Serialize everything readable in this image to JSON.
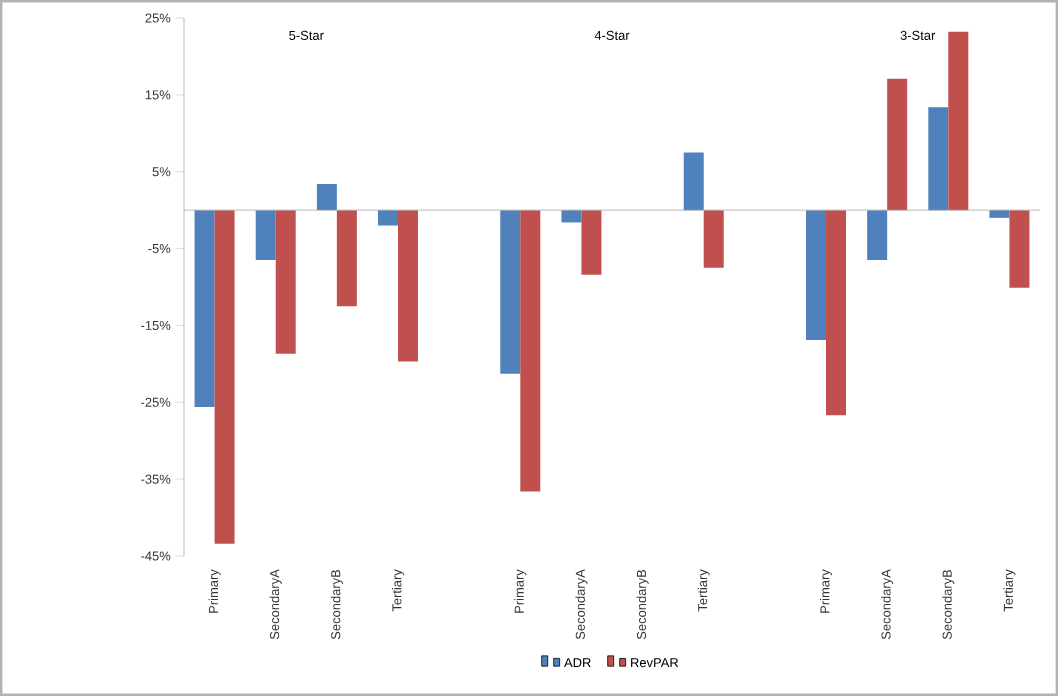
{
  "chart_data": {
    "type": "bar",
    "categories": [
      "Primary",
      "SecondaryA",
      "SecondaryB",
      "Tertiary",
      null,
      "Primary",
      "SecondaryA",
      "SecondaryB",
      "Tertiary",
      null,
      "Primary",
      "SecondaryA",
      "SecondaryB",
      "Tertiary"
    ],
    "series": [
      {
        "name": "ADR",
        "color": "#4f81bd",
        "values": [
          -25.6,
          -6.5,
          3.4,
          -2,
          null,
          -21.3,
          -1.6,
          null,
          7.5,
          null,
          -16.9,
          -6.5,
          13.4,
          -1
        ]
      },
      {
        "name": "RevPAR",
        "color": "#c0504d",
        "values": [
          -43.4,
          -18.7,
          -12.5,
          -19.7,
          null,
          -36.6,
          -8.4,
          null,
          -7.5,
          null,
          -26.7,
          17.1,
          23.2,
          -10.1
        ]
      }
    ],
    "annotations": [
      "5-Star",
      "4-Star",
      "3-Star"
    ],
    "ylim": [
      -45,
      25
    ],
    "yticks": [
      {
        "value": 25,
        "label": "25%"
      },
      {
        "value": 15,
        "label": "15%"
      },
      {
        "value": 5,
        "label": "5%"
      },
      {
        "value": -5,
        "label": "-5%"
      },
      {
        "value": -15,
        "label": "-15%"
      },
      {
        "value": -25,
        "label": "-25%"
      },
      {
        "value": -35,
        "label": "-35%"
      },
      {
        "value": -45,
        "label": "-45%"
      }
    ],
    "grid": false,
    "legend": "bottom"
  }
}
